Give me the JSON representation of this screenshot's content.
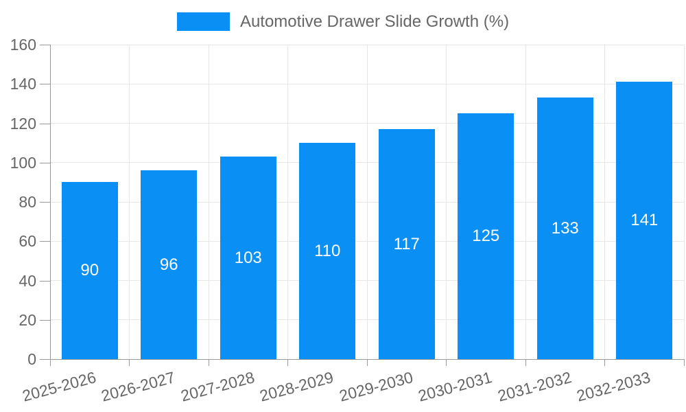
{
  "chart_data": {
    "type": "bar",
    "title": "Automotive Drawer Slide Growth (%)",
    "legend_entries": [
      "Automotive Drawer Slide Growth (%)"
    ],
    "legend_position": "top-center",
    "categories": [
      "2025-2026",
      "2026-2027",
      "2027-2028",
      "2028-2029",
      "2029-2030",
      "2030-2031",
      "2031-2032",
      "2032-2033"
    ],
    "values": [
      90,
      96,
      103,
      110,
      117,
      125,
      133,
      141
    ],
    "data_labels": [
      "90",
      "96",
      "103",
      "110",
      "117",
      "125",
      "133",
      "141"
    ],
    "xlabel": "",
    "ylabel": "",
    "ylim": [
      0,
      160
    ],
    "y_ticks": [
      0,
      20,
      40,
      60,
      80,
      100,
      120,
      140,
      160
    ],
    "grid": true,
    "x_label_rotation_deg": -15,
    "colors": {
      "bar": "#0a90f5",
      "bar_label": "#ffffff",
      "axis_text": "#666666",
      "grid_line": "#e6e6e6",
      "axis_line": "#999999",
      "background": "#ffffff"
    }
  }
}
